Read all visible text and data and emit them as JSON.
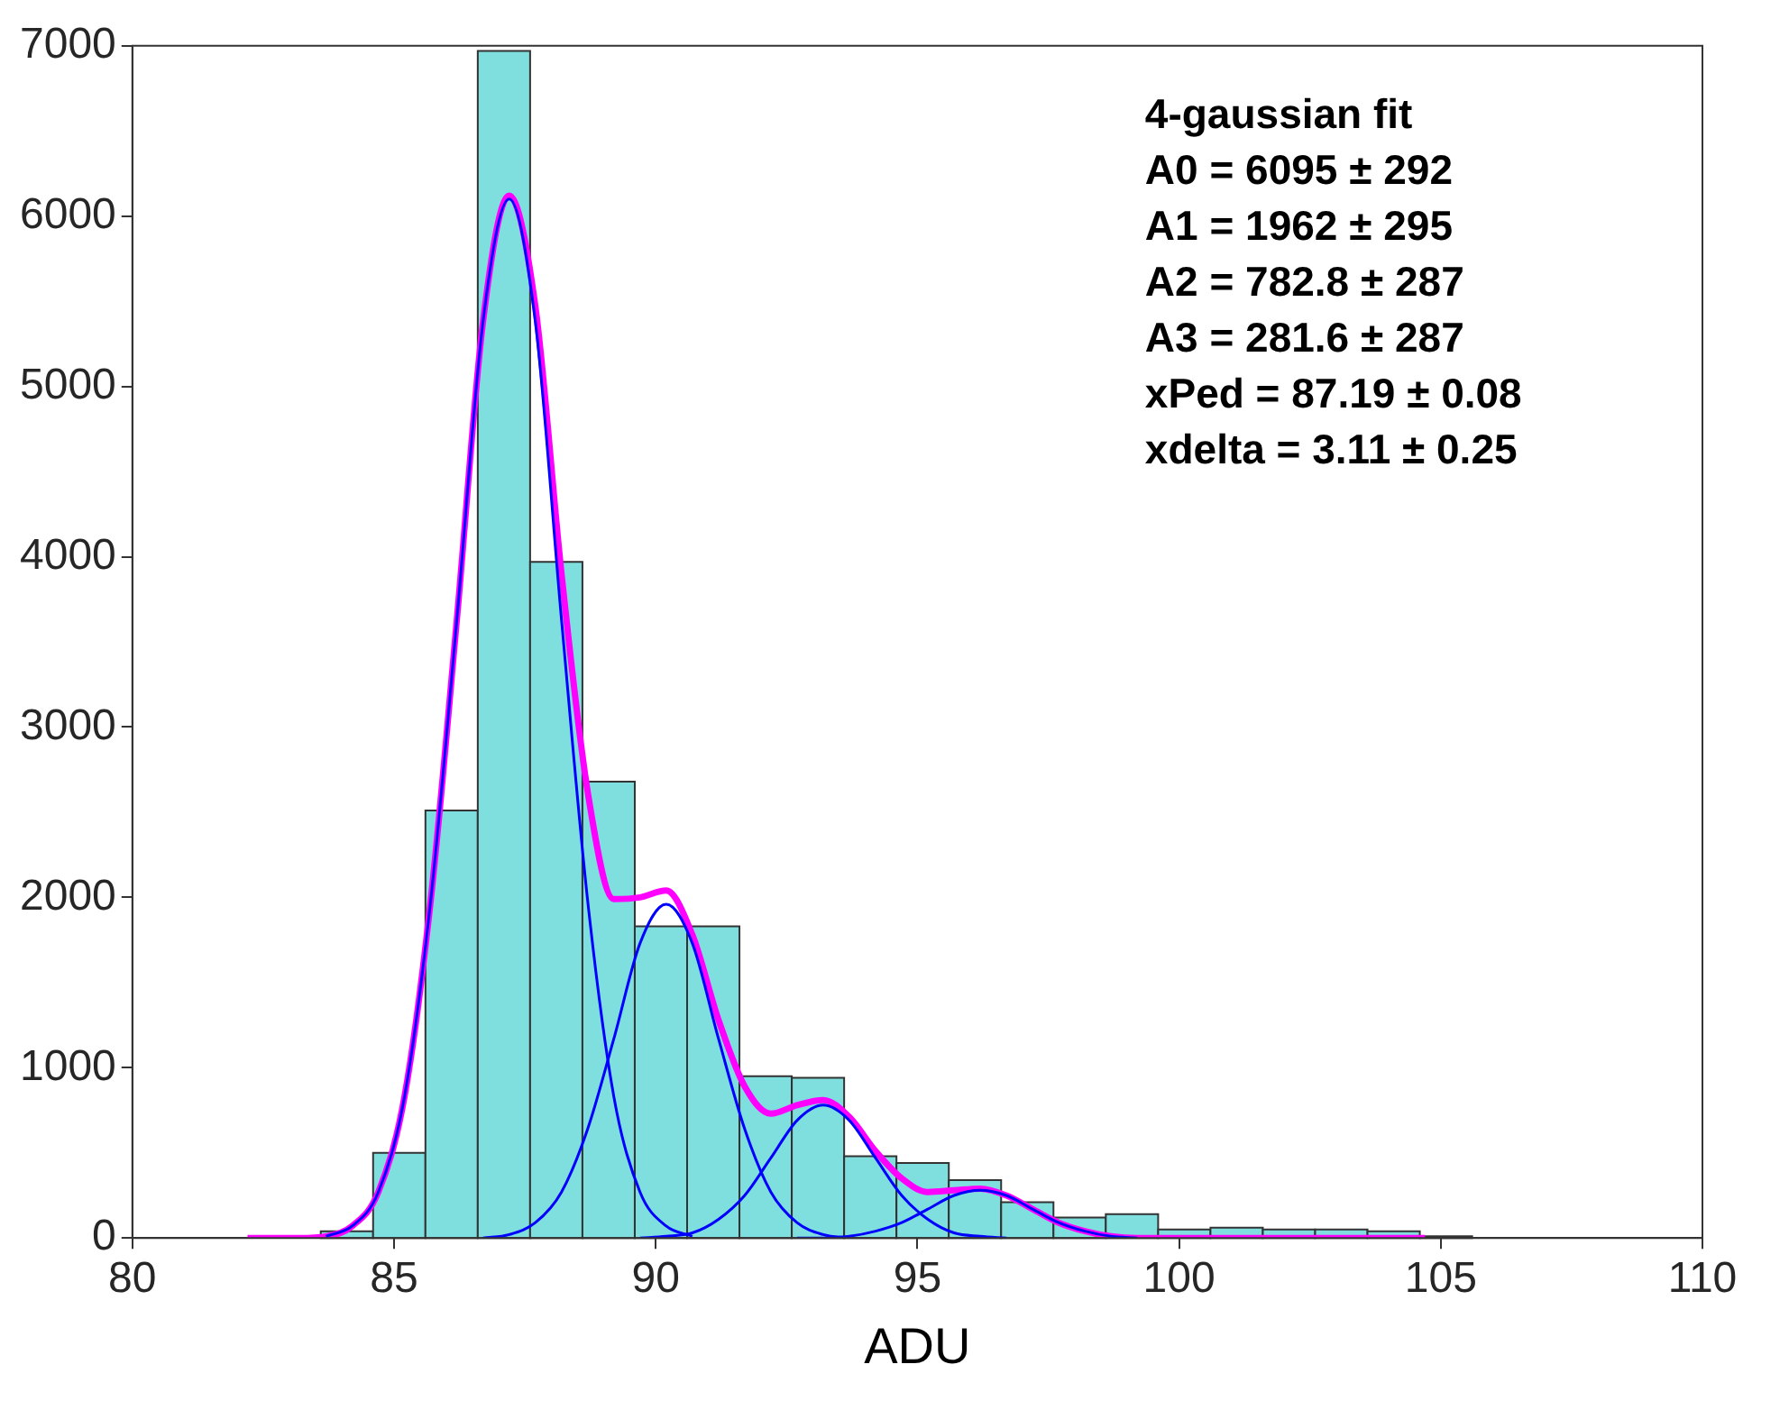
{
  "chart_data": {
    "type": "histogram",
    "xlabel": "ADU",
    "bins": [
      83.6,
      84.6,
      85.6,
      86.6,
      87.6,
      88.6,
      89.6,
      90.6,
      91.6,
      92.6,
      93.6,
      94.6,
      95.6,
      96.6,
      97.6,
      98.6,
      99.6,
      100.6,
      101.6,
      102.6,
      103.6,
      104.6,
      105.6
    ],
    "values": [
      40,
      500,
      2510,
      6970,
      3970,
      2680,
      1830,
      1830,
      950,
      940,
      480,
      440,
      340,
      210,
      120,
      140,
      50,
      60,
      50,
      50,
      40,
      10
    ],
    "color": "#7fdfdf",
    "series": [
      {
        "type": "line",
        "color": "#0000ff",
        "x": [
          83.7,
          84.2,
          84.7,
          85.2,
          85.7,
          86.2,
          86.7,
          87.2,
          87.7,
          88.2,
          88.7,
          89.2,
          89.7,
          90.2,
          90.7
        ],
        "values": [
          10,
          70,
          270,
          830,
          1980,
          3630,
          5380,
          6100,
          5380,
          3630,
          1980,
          830,
          270,
          70,
          10
        ]
      },
      {
        "type": "line",
        "color": "#0000ff",
        "x": [
          86.7,
          87.2,
          87.7,
          88.2,
          88.7,
          89.2,
          89.7,
          90.2,
          90.7,
          91.2,
          91.7,
          92.2,
          92.7,
          93.2,
          93.7
        ],
        "values": [
          0,
          20,
          90,
          270,
          640,
          1170,
          1730,
          1960,
          1730,
          1170,
          640,
          270,
          90,
          20,
          0
        ]
      },
      {
        "type": "line",
        "color": "#0000ff",
        "x": [
          89.7,
          90.2,
          90.7,
          91.2,
          91.7,
          92.2,
          92.7,
          93.2,
          93.7,
          94.2,
          94.7,
          95.2,
          95.7,
          96.2,
          96.7
        ],
        "values": [
          0,
          10,
          30,
          110,
          250,
          470,
          690,
          780,
          690,
          470,
          250,
          110,
          30,
          10,
          0
        ]
      },
      {
        "type": "line",
        "color": "#0000ff",
        "x": [
          92.7,
          93.2,
          93.7,
          94.2,
          94.7,
          95.2,
          95.7,
          96.2,
          96.7,
          97.2,
          97.7,
          98.2,
          98.7,
          99.2
        ],
        "values": [
          0,
          0,
          10,
          40,
          90,
          170,
          250,
          280,
          250,
          170,
          90,
          40,
          10,
          0
        ]
      },
      {
        "type": "line",
        "color": "#ff00ff",
        "x": [
          82.2,
          82.7,
          83.2,
          83.7,
          84.2,
          84.7,
          85.2,
          85.7,
          86.2,
          86.7,
          87.2,
          87.7,
          88.2,
          88.7,
          89.2,
          89.7,
          90.2,
          90.7,
          91.2,
          91.7,
          92.2,
          92.7,
          93.2,
          93.7,
          94.2,
          94.7,
          95.2,
          95.7,
          96.2,
          96.7,
          97.2,
          97.7,
          98.2,
          98.7,
          99.2,
          99.7,
          100.2,
          100.7,
          101.2,
          101.7,
          102.2,
          102.7,
          103.2,
          103.7,
          104.2,
          104.7
        ],
        "values": [
          0,
          0,
          0,
          10,
          70,
          270,
          830,
          1980,
          3630,
          5380,
          6120,
          5470,
          3900,
          2620,
          1990,
          2000,
          2040,
          1780,
          1280,
          890,
          730,
          780,
          810,
          710,
          510,
          350,
          270,
          280,
          290,
          250,
          170,
          90,
          40,
          10,
          0,
          0,
          0,
          0,
          0,
          0,
          0,
          0,
          0,
          0,
          0,
          0
        ]
      }
    ],
    "xlim": [
      80,
      110
    ],
    "xticks": [
      80,
      85,
      90,
      95,
      100,
      105,
      110
    ],
    "ylim": [
      0,
      7000
    ],
    "yticks": [
      0,
      1000,
      2000,
      3000,
      4000,
      5000,
      6000,
      7000
    ],
    "grid": false,
    "legend": false,
    "annotations": [
      "4-gaussian fit",
      "A0 = 6095 ± 292",
      "A1 = 1962 ± 295",
      "A2 = 782.8 ± 287",
      "A3 = 281.6 ± 287",
      "xPed = 87.19 ± 0.08",
      "xdelta = 3.11 ± 0.25"
    ]
  }
}
